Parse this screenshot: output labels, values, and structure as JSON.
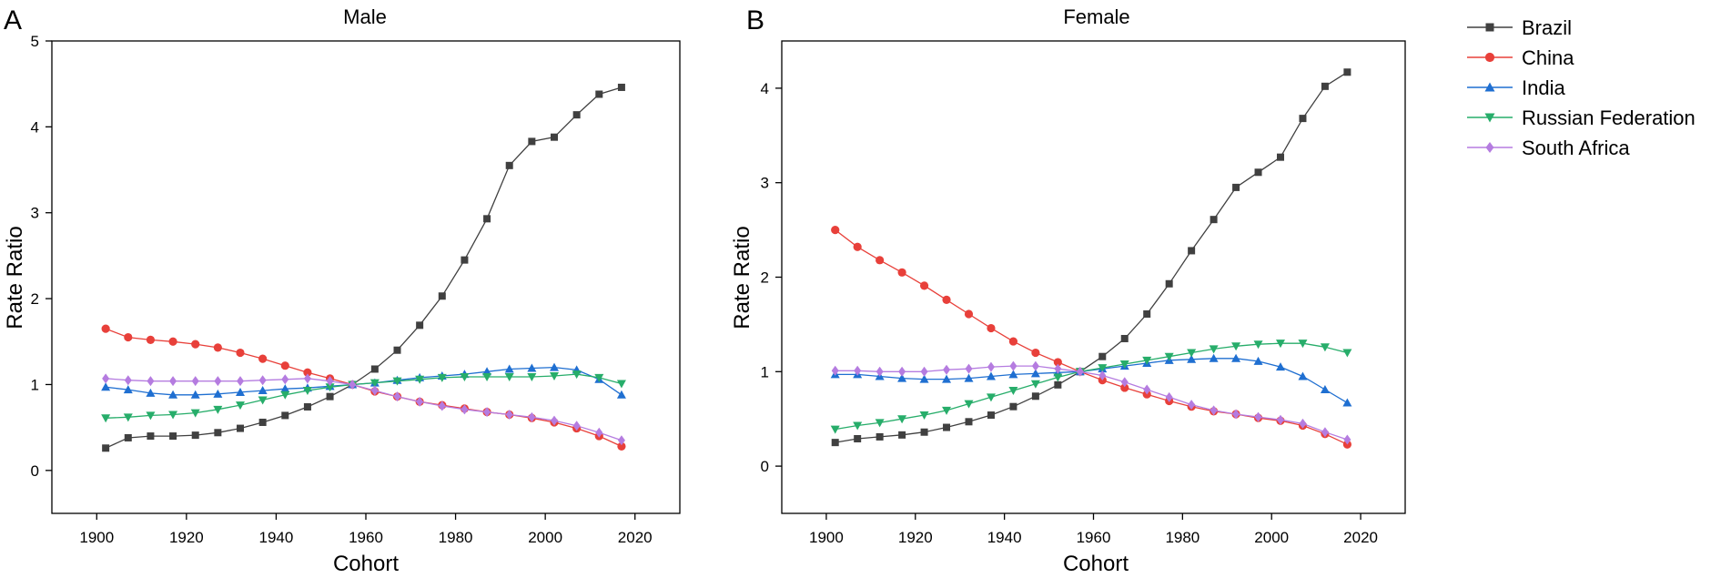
{
  "figure": {
    "legend": {
      "position": "right",
      "entries": [
        "Brazil",
        "China",
        "India",
        "Russian Federation",
        "South Africa"
      ]
    }
  },
  "series_style": [
    {
      "name": "Brazil",
      "color": "#404040",
      "marker": "square"
    },
    {
      "name": "China",
      "color": "#e8403a",
      "marker": "circle"
    },
    {
      "name": "India",
      "color": "#1f6fd1",
      "marker": "triangle-up"
    },
    {
      "name": "Russian Federation",
      "color": "#27ad6a",
      "marker": "triangle-down"
    },
    {
      "name": "South Africa",
      "color": "#b57ce0",
      "marker": "diamond"
    }
  ],
  "chart_data": [
    {
      "type": "line",
      "panel_label": "A",
      "title": "Male",
      "xlabel": "Cohort",
      "ylabel": "Rate Ratio",
      "xlim": [
        1890,
        2030
      ],
      "ylim": [
        -0.5,
        5
      ],
      "xticks": [
        1900,
        1920,
        1940,
        1960,
        1980,
        2000,
        2020
      ],
      "yticks": [
        0,
        1,
        2,
        3,
        4,
        5
      ],
      "grid": false,
      "x": [
        1902,
        1907,
        1912,
        1917,
        1922,
        1927,
        1932,
        1937,
        1942,
        1947,
        1952,
        1957,
        1962,
        1967,
        1972,
        1977,
        1982,
        1987,
        1992,
        1997,
        2002,
        2007,
        2012,
        2017
      ],
      "series": [
        {
          "name": "Brazil",
          "values": [
            0.26,
            0.38,
            0.4,
            0.4,
            0.41,
            0.44,
            0.49,
            0.56,
            0.64,
            0.74,
            0.86,
            1.0,
            1.18,
            1.4,
            1.69,
            2.03,
            2.45,
            2.93,
            3.55,
            3.83,
            3.88,
            4.14,
            4.38,
            4.46
          ]
        },
        {
          "name": "China",
          "values": [
            1.65,
            1.55,
            1.52,
            1.5,
            1.47,
            1.43,
            1.37,
            1.3,
            1.22,
            1.14,
            1.07,
            1.0,
            0.92,
            0.86,
            0.8,
            0.76,
            0.72,
            0.68,
            0.65,
            0.61,
            0.56,
            0.49,
            0.4,
            0.28
          ]
        },
        {
          "name": "India",
          "values": [
            0.97,
            0.94,
            0.9,
            0.88,
            0.88,
            0.89,
            0.91,
            0.93,
            0.95,
            0.96,
            0.98,
            1.0,
            1.02,
            1.05,
            1.08,
            1.1,
            1.12,
            1.15,
            1.18,
            1.19,
            1.2,
            1.17,
            1.06,
            0.88
          ]
        },
        {
          "name": "Russian Federation",
          "values": [
            0.61,
            0.62,
            0.64,
            0.65,
            0.67,
            0.71,
            0.76,
            0.82,
            0.88,
            0.93,
            0.97,
            1.0,
            1.02,
            1.04,
            1.06,
            1.08,
            1.09,
            1.09,
            1.09,
            1.09,
            1.1,
            1.12,
            1.08,
            1.01
          ]
        },
        {
          "name": "South Africa",
          "values": [
            1.07,
            1.05,
            1.04,
            1.04,
            1.04,
            1.04,
            1.04,
            1.05,
            1.06,
            1.07,
            1.04,
            1.0,
            0.93,
            0.86,
            0.8,
            0.75,
            0.71,
            0.68,
            0.65,
            0.62,
            0.58,
            0.52,
            0.44,
            0.35
          ]
        }
      ]
    },
    {
      "type": "line",
      "panel_label": "B",
      "title": "Female",
      "xlabel": "Cohort",
      "ylabel": "Rate Ratio",
      "xlim": [
        1890,
        2030
      ],
      "ylim": [
        -0.5,
        4.5
      ],
      "xticks": [
        1900,
        1920,
        1940,
        1960,
        1980,
        2000,
        2020
      ],
      "yticks": [
        0,
        1,
        2,
        3,
        4
      ],
      "grid": false,
      "x": [
        1902,
        1907,
        1912,
        1917,
        1922,
        1927,
        1932,
        1937,
        1942,
        1947,
        1952,
        1957,
        1962,
        1967,
        1972,
        1977,
        1982,
        1987,
        1992,
        1997,
        2002,
        2007,
        2012,
        2017
      ],
      "series": [
        {
          "name": "Brazil",
          "values": [
            0.25,
            0.29,
            0.31,
            0.33,
            0.36,
            0.41,
            0.47,
            0.54,
            0.63,
            0.74,
            0.86,
            1.0,
            1.16,
            1.35,
            1.61,
            1.93,
            2.28,
            2.61,
            2.95,
            3.11,
            3.27,
            3.68,
            4.02,
            4.17
          ]
        },
        {
          "name": "China",
          "values": [
            2.5,
            2.32,
            2.18,
            2.05,
            1.91,
            1.76,
            1.61,
            1.46,
            1.32,
            1.2,
            1.1,
            1.0,
            0.91,
            0.83,
            0.76,
            0.69,
            0.63,
            0.58,
            0.55,
            0.51,
            0.48,
            0.43,
            0.34,
            0.23
          ]
        },
        {
          "name": "India",
          "values": [
            0.97,
            0.97,
            0.95,
            0.93,
            0.92,
            0.92,
            0.93,
            0.95,
            0.97,
            0.98,
            0.99,
            1.0,
            1.03,
            1.06,
            1.09,
            1.12,
            1.13,
            1.14,
            1.14,
            1.11,
            1.05,
            0.95,
            0.81,
            0.67
          ]
        },
        {
          "name": "Russian Federation",
          "values": [
            0.39,
            0.43,
            0.46,
            0.5,
            0.54,
            0.59,
            0.66,
            0.73,
            0.8,
            0.87,
            0.94,
            1.0,
            1.04,
            1.08,
            1.12,
            1.16,
            1.2,
            1.24,
            1.27,
            1.29,
            1.3,
            1.3,
            1.26,
            1.2
          ]
        },
        {
          "name": "South Africa",
          "values": [
            1.01,
            1.01,
            1.0,
            1.0,
            1.0,
            1.02,
            1.03,
            1.05,
            1.06,
            1.06,
            1.03,
            1.0,
            0.96,
            0.89,
            0.81,
            0.73,
            0.65,
            0.59,
            0.55,
            0.52,
            0.49,
            0.45,
            0.36,
            0.28
          ]
        }
      ]
    }
  ]
}
